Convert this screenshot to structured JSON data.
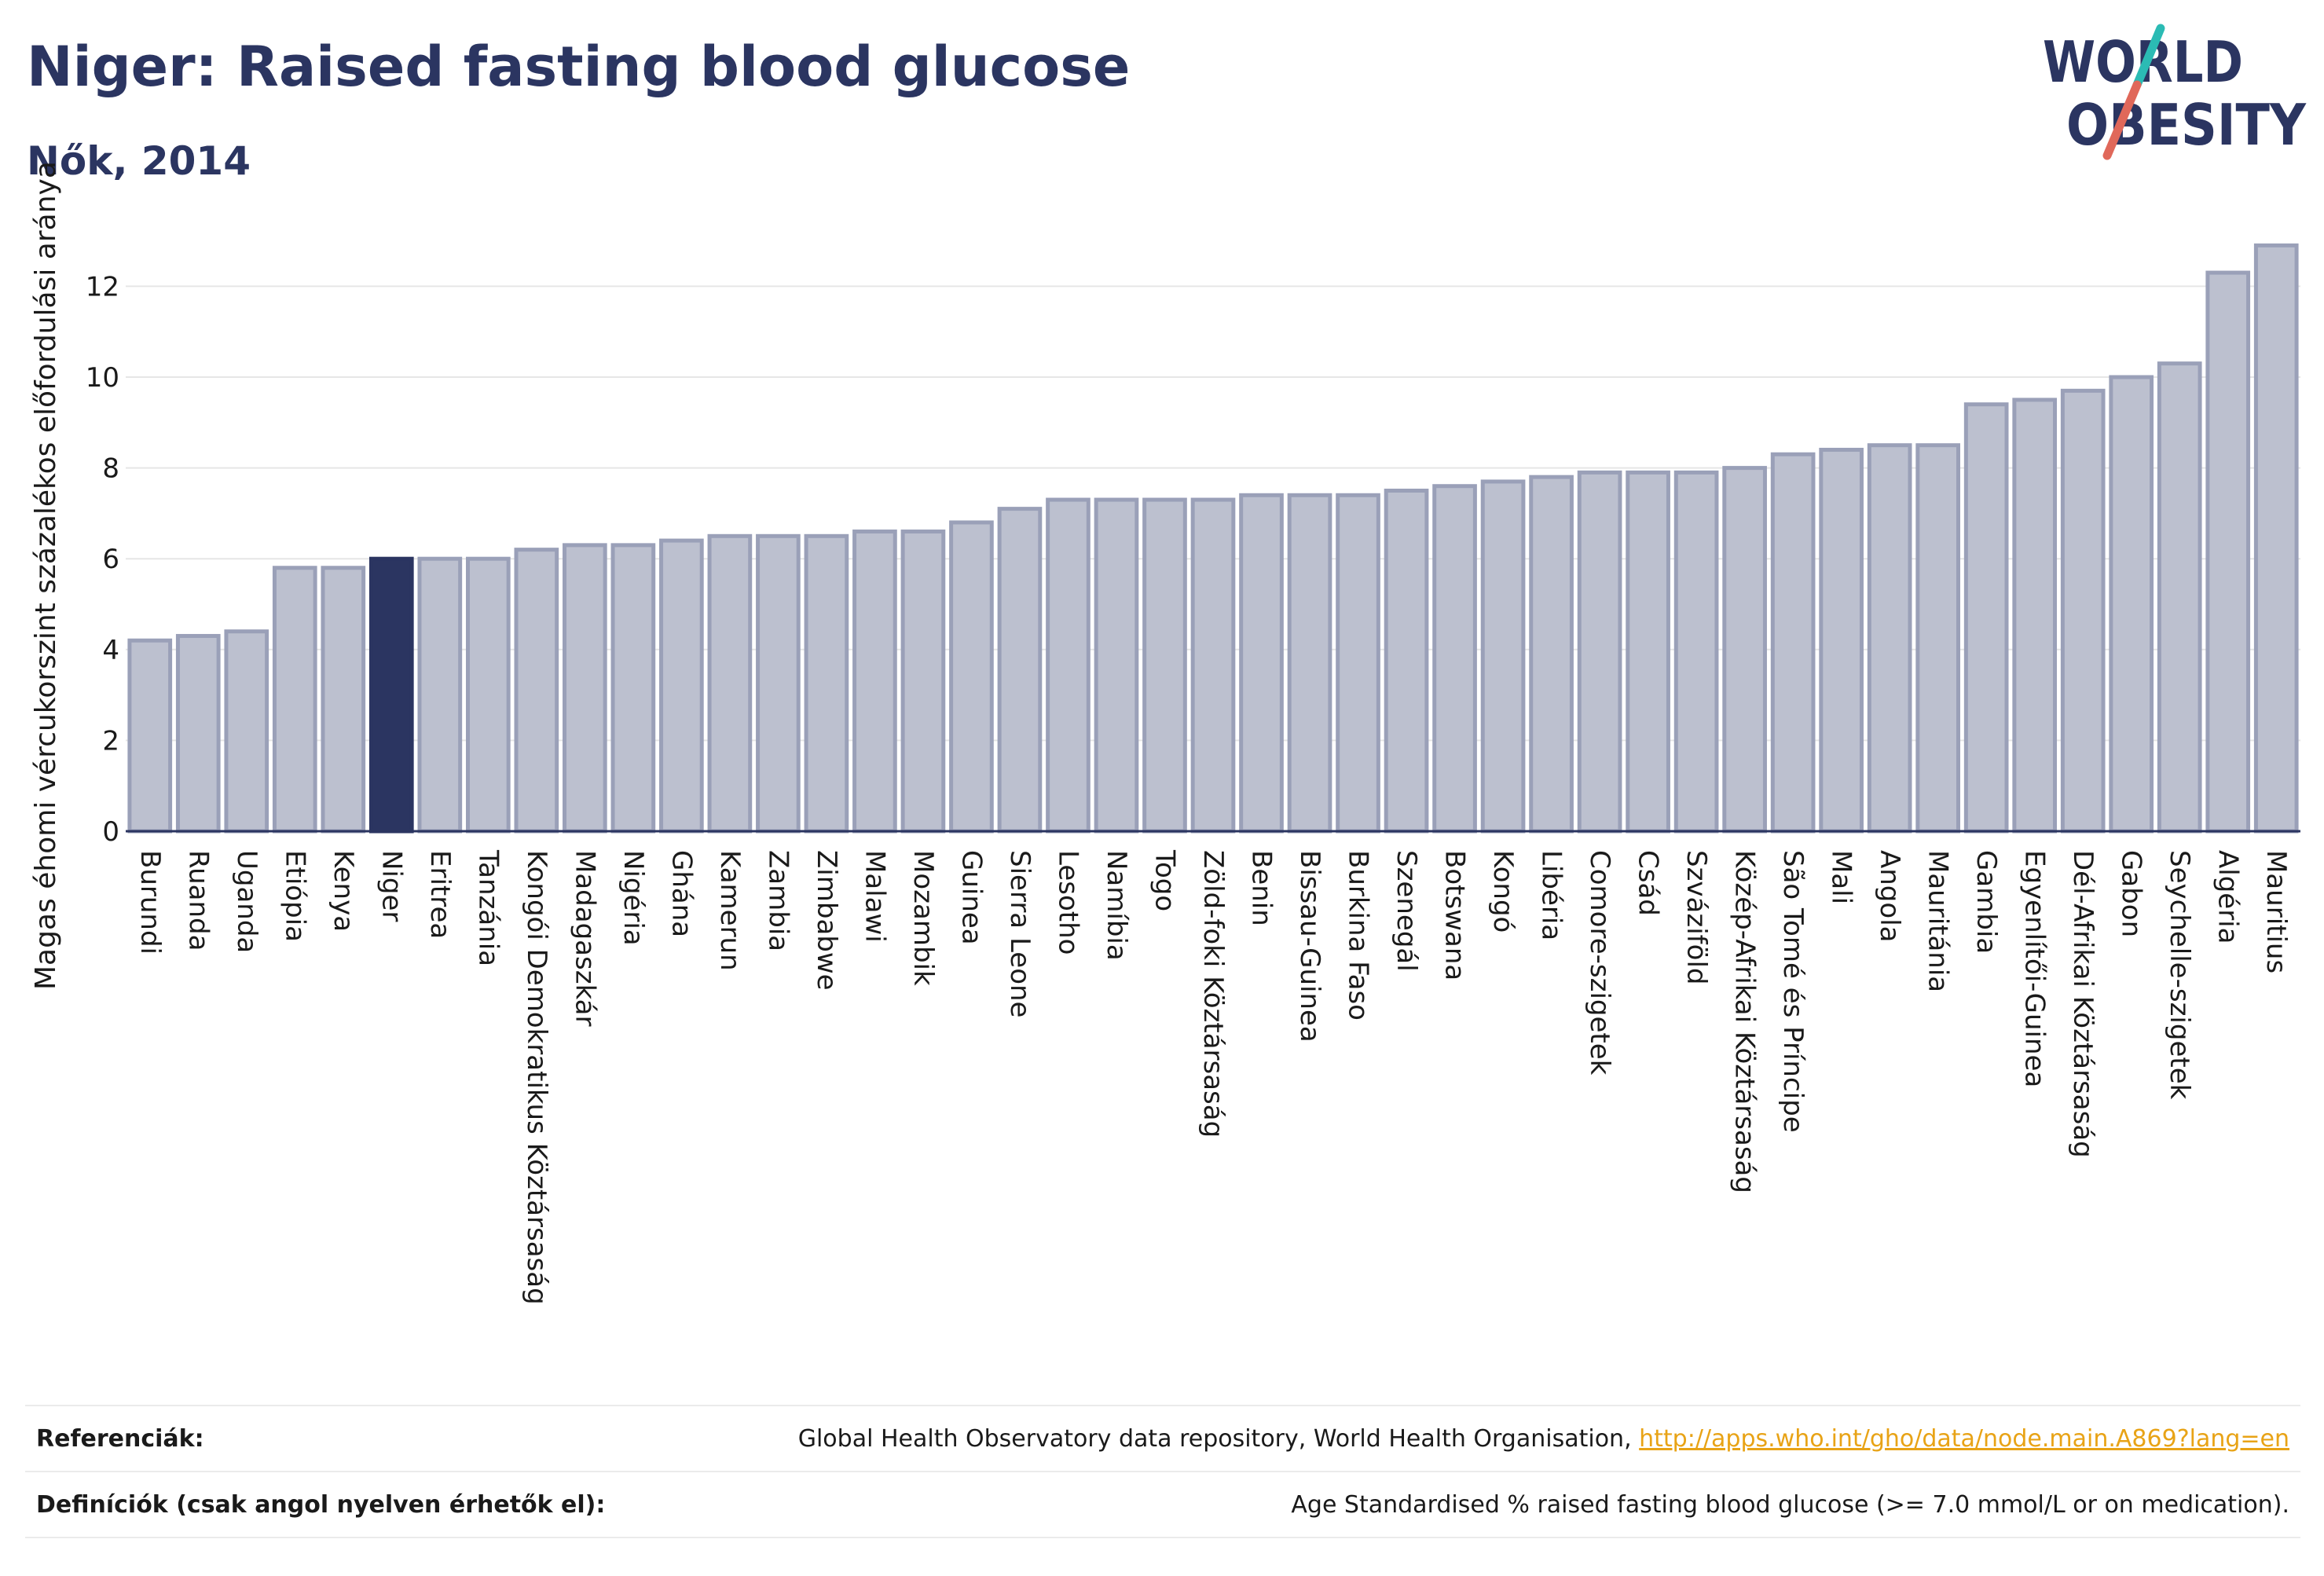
{
  "title": "Niger: Raised fasting blood glucose",
  "subtitle": "Nők, 2014",
  "logo": {
    "line1": "WORLD",
    "line2": "OBESITY",
    "accent_teal": "#2bbbb4",
    "accent_red": "#e0685a"
  },
  "colors": {
    "bar": "#bcc0cf",
    "bar_border": "#9aa0b8",
    "highlight": "#2b3561",
    "axis": "#2b3561",
    "grid": "#e6e6e6"
  },
  "chart_data": {
    "type": "bar",
    "categories": [
      "Burundi",
      "Ruanda",
      "Uganda",
      "Etiópia",
      "Kenya",
      "Niger",
      "Eritrea",
      "Tanzánia",
      "Kongói Demokratikus Köztársaság",
      "Madagaszkár",
      "Nigéria",
      "Ghána",
      "Kamerun",
      "Zambia",
      "Zimbabwe",
      "Malawi",
      "Mozambik",
      "Guinea",
      "Sierra Leone",
      "Lesotho",
      "Namíbia",
      "Togo",
      "Zöld-foki Köztársaság",
      "Benin",
      "Bissau-Guinea",
      "Burkina Faso",
      "Szenegál",
      "Botswana",
      "Kongó",
      "Libéria",
      "Comore-szigetek",
      "Csád",
      "Szváziföld",
      "Közép-Afrikai Köztársaság",
      "São Tomé és Príncipe",
      "Mali",
      "Angola",
      "Mauritánia",
      "Gambia",
      "Egyenlítői-Guinea",
      "Dél-Afrikai Köztársaság",
      "Gabon",
      "Seychelle-szigetek",
      "Algéria",
      "Mauritius"
    ],
    "values": [
      4.2,
      4.3,
      4.4,
      5.8,
      5.8,
      6.0,
      6.0,
      6.0,
      6.2,
      6.3,
      6.3,
      6.4,
      6.5,
      6.5,
      6.5,
      6.6,
      6.6,
      6.8,
      7.1,
      7.3,
      7.3,
      7.3,
      7.3,
      7.4,
      7.4,
      7.4,
      7.5,
      7.6,
      7.7,
      7.8,
      7.9,
      7.9,
      7.9,
      8.0,
      8.3,
      8.4,
      8.5,
      8.5,
      9.4,
      9.5,
      9.7,
      10.0,
      10.3,
      12.3,
      12.9
    ],
    "highlight": "Niger",
    "ylabel": "Magas éhomi vércukorszint százalékos előfordulási aránya",
    "xlabel": "",
    "ylim": [
      0,
      13.5
    ],
    "yticks": [
      0,
      2,
      4,
      6,
      8,
      10,
      12
    ],
    "grid": true
  },
  "footer": {
    "references_label": "Referenciák:",
    "references_text": "Global Health Observatory data repository, World Health Organisation, ",
    "references_link": "http://apps.who.int/gho/data/node.main.A869?lang=en",
    "definitions_label": "Definíciók (csak angol nyelven érhetők el):",
    "definitions_text": "Age Standardised % raised fasting blood glucose (>= 7.0 mmol/L or on medication)."
  }
}
